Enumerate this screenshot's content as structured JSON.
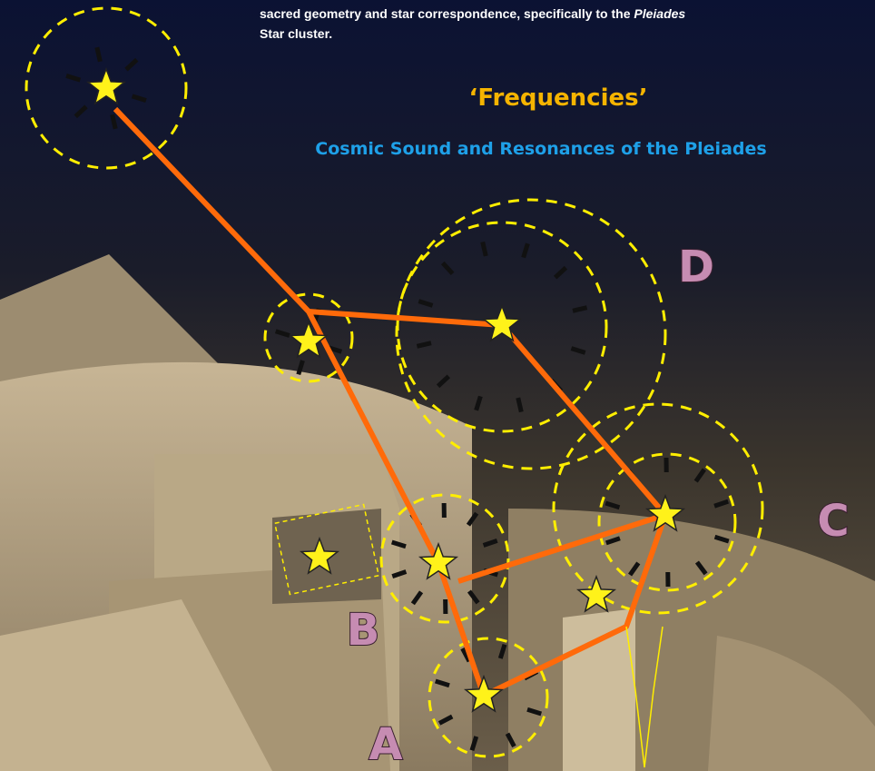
{
  "header": {
    "intro": [
      "sacred geometry and star correspondence, specifically to the ",
      "Pleiades",
      "Star cluster."
    ],
    "title": "‘Frequencies’",
    "subtitle": "Cosmic Sound and Resonances of the Pleiades"
  },
  "labels": [
    "A",
    "B",
    "C",
    "D"
  ]
}
